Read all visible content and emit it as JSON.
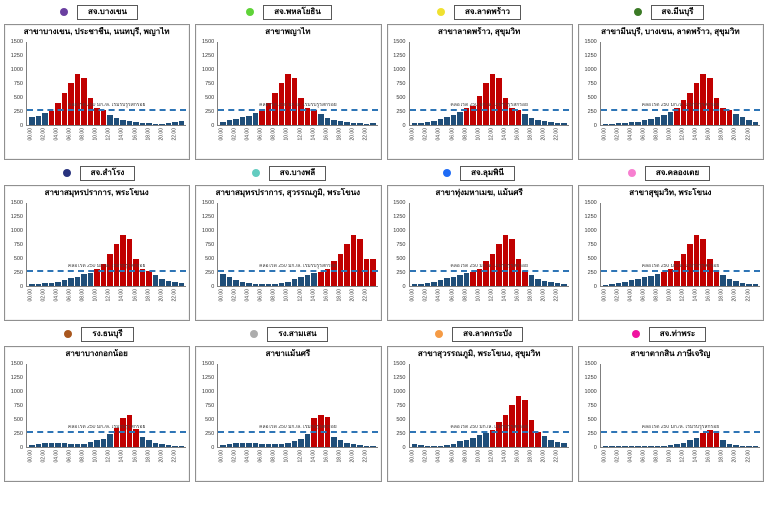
{
  "chart_common": {
    "ylim": [
      0,
      1500
    ],
    "yticks": [
      0,
      250,
      500,
      750,
      1000,
      1250,
      1500
    ],
    "x_hour_labels": [
      "00.00",
      "01.00",
      "02.00",
      "03.00",
      "04.00",
      "05.00",
      "06.00",
      "07.00",
      "08.00",
      "09.00",
      "10.00",
      "11.00",
      "12.00",
      "13.00",
      "14.00",
      "15.00",
      "16.00",
      "17.00",
      "18.00",
      "19.00",
      "20.00",
      "21.00",
      "22.00",
      "23.00"
    ],
    "x_ticks_shown_every": 2,
    "threshold": 250,
    "annotation": "คลอไรด์ 250 มก./ล. เริ่มรับรู้รสกร่อย",
    "grid": "off",
    "colors": {
      "bar_above_threshold": "#C00000",
      "bar_below_threshold": "#1F4E79",
      "threshold_line": "#2E75B6"
    }
  },
  "chart_data": [
    {
      "type": "bar",
      "title": "สาขาบางเขน, ประชาชื่น, นนทบุรี, พญาไท",
      "legend": {
        "label": "สจ.บางเขน",
        "color": "#6A3FA0"
      },
      "values": [
        140,
        170,
        210,
        260,
        390,
        580,
        760,
        920,
        850,
        480,
        300,
        280,
        190,
        120,
        90,
        70,
        50,
        40,
        30,
        25,
        20,
        30,
        50,
        65
      ]
    },
    {
      "type": "bar",
      "title": "สาขาพญาไท",
      "legend": {
        "label": "สจ.พหลโยธิน",
        "color": "#5FD338"
      },
      "values": [
        60,
        90,
        110,
        140,
        170,
        210,
        260,
        390,
        580,
        760,
        920,
        850,
        480,
        300,
        280,
        200,
        130,
        90,
        70,
        50,
        40,
        30,
        20,
        30
      ]
    },
    {
      "type": "bar",
      "title": "สาขาลาดพร้าว, สุขุมวิท",
      "legend": {
        "label": "สจ.ลาดพร้าว",
        "color": "#F0E130"
      },
      "values": [
        30,
        40,
        60,
        80,
        110,
        140,
        180,
        230,
        300,
        350,
        520,
        760,
        920,
        850,
        480,
        300,
        280,
        200,
        130,
        90,
        70,
        50,
        40,
        30
      ]
    },
    {
      "type": "bar",
      "title": "สาขามีนบุรี, บางเขน, ลาดพร้าว, สุขุมวิท",
      "legend": {
        "label": "สจ.มีนบุรี",
        "color": "#3B7A26"
      },
      "values": [
        20,
        25,
        30,
        40,
        50,
        60,
        90,
        110,
        140,
        180,
        230,
        300,
        450,
        580,
        760,
        920,
        850,
        480,
        300,
        280,
        200,
        140,
        90,
        60
      ]
    },
    {
      "type": "bar",
      "title": "สาขาสมุทรปราการ, พระโขนง",
      "legend": {
        "label": "สจ.สำโรง",
        "color": "#28327E"
      },
      "values": [
        30,
        40,
        50,
        60,
        80,
        110,
        140,
        170,
        210,
        240,
        300,
        390,
        580,
        760,
        920,
        850,
        480,
        300,
        280,
        200,
        130,
        90,
        70,
        55
      ]
    },
    {
      "type": "bar",
      "title": "สาขาสมุทรปราการ, สุวรรณภูมิ, พระโขนง",
      "legend": {
        "label": "สจ.บางพลี",
        "color": "#63CCC0"
      },
      "values": [
        220,
        160,
        110,
        70,
        50,
        40,
        30,
        30,
        40,
        60,
        80,
        120,
        160,
        200,
        230,
        260,
        300,
        450,
        580,
        760,
        920,
        850,
        490,
        480
      ]
    },
    {
      "type": "bar",
      "title": "สาขาทุ่งมหาเมฆ, แม้นศรี",
      "legend": {
        "label": "สจ.ลุมพินี",
        "color": "#1E6BF5"
      },
      "values": [
        30,
        40,
        60,
        80,
        110,
        140,
        170,
        200,
        230,
        260,
        300,
        450,
        580,
        760,
        920,
        850,
        480,
        280,
        200,
        130,
        90,
        70,
        50,
        35
      ]
    },
    {
      "type": "bar",
      "title": "สาขาสุขุมวิท, พระโขนง",
      "legend": {
        "label": "สจ.คลองเตย",
        "color": "#F77FD0"
      },
      "values": [
        25,
        35,
        55,
        75,
        100,
        130,
        160,
        190,
        220,
        260,
        310,
        460,
        580,
        760,
        920,
        850,
        490,
        290,
        200,
        130,
        90,
        60,
        40,
        30
      ]
    },
    {
      "type": "bar",
      "title": "สาขาบางกอกน้อย",
      "legend": {
        "label": "รง.ธนบุรี",
        "color": "#A9571E"
      },
      "values": [
        40,
        60,
        70,
        80,
        75,
        70,
        60,
        50,
        60,
        90,
        120,
        150,
        230,
        350,
        530,
        570,
        330,
        180,
        120,
        80,
        50,
        30,
        20,
        15
      ]
    },
    {
      "type": "bar",
      "title": "สาขาแม้นศรี",
      "legend": {
        "label": "รง.สามเสน",
        "color": "#ACACAC"
      },
      "values": [
        40,
        60,
        75,
        80,
        75,
        70,
        60,
        55,
        50,
        60,
        80,
        110,
        150,
        230,
        520,
        570,
        540,
        180,
        120,
        80,
        50,
        30,
        20,
        15
      ]
    },
    {
      "type": "bar",
      "title": "สาขาสุวรรณภูมิ, พระโขนง, สุขุมวิท",
      "legend": {
        "label": "สจ.ลาดกระบัง",
        "color": "#F59B45"
      },
      "values": [
        50,
        30,
        20,
        20,
        25,
        40,
        60,
        100,
        130,
        170,
        210,
        250,
        300,
        450,
        580,
        760,
        920,
        850,
        480,
        280,
        200,
        120,
        90,
        80
      ]
    },
    {
      "type": "bar",
      "title": "สาขาตากสิน ภาษีเจริญ",
      "legend": {
        "label": "สจ.ท่าพระ",
        "color": "#F013A0"
      },
      "values": [
        5,
        5,
        5,
        5,
        5,
        5,
        5,
        8,
        10,
        20,
        35,
        50,
        80,
        120,
        160,
        260,
        310,
        280,
        130,
        50,
        30,
        10,
        5,
        5
      ]
    }
  ],
  "layout": {
    "columns": 4,
    "rows": 3
  }
}
